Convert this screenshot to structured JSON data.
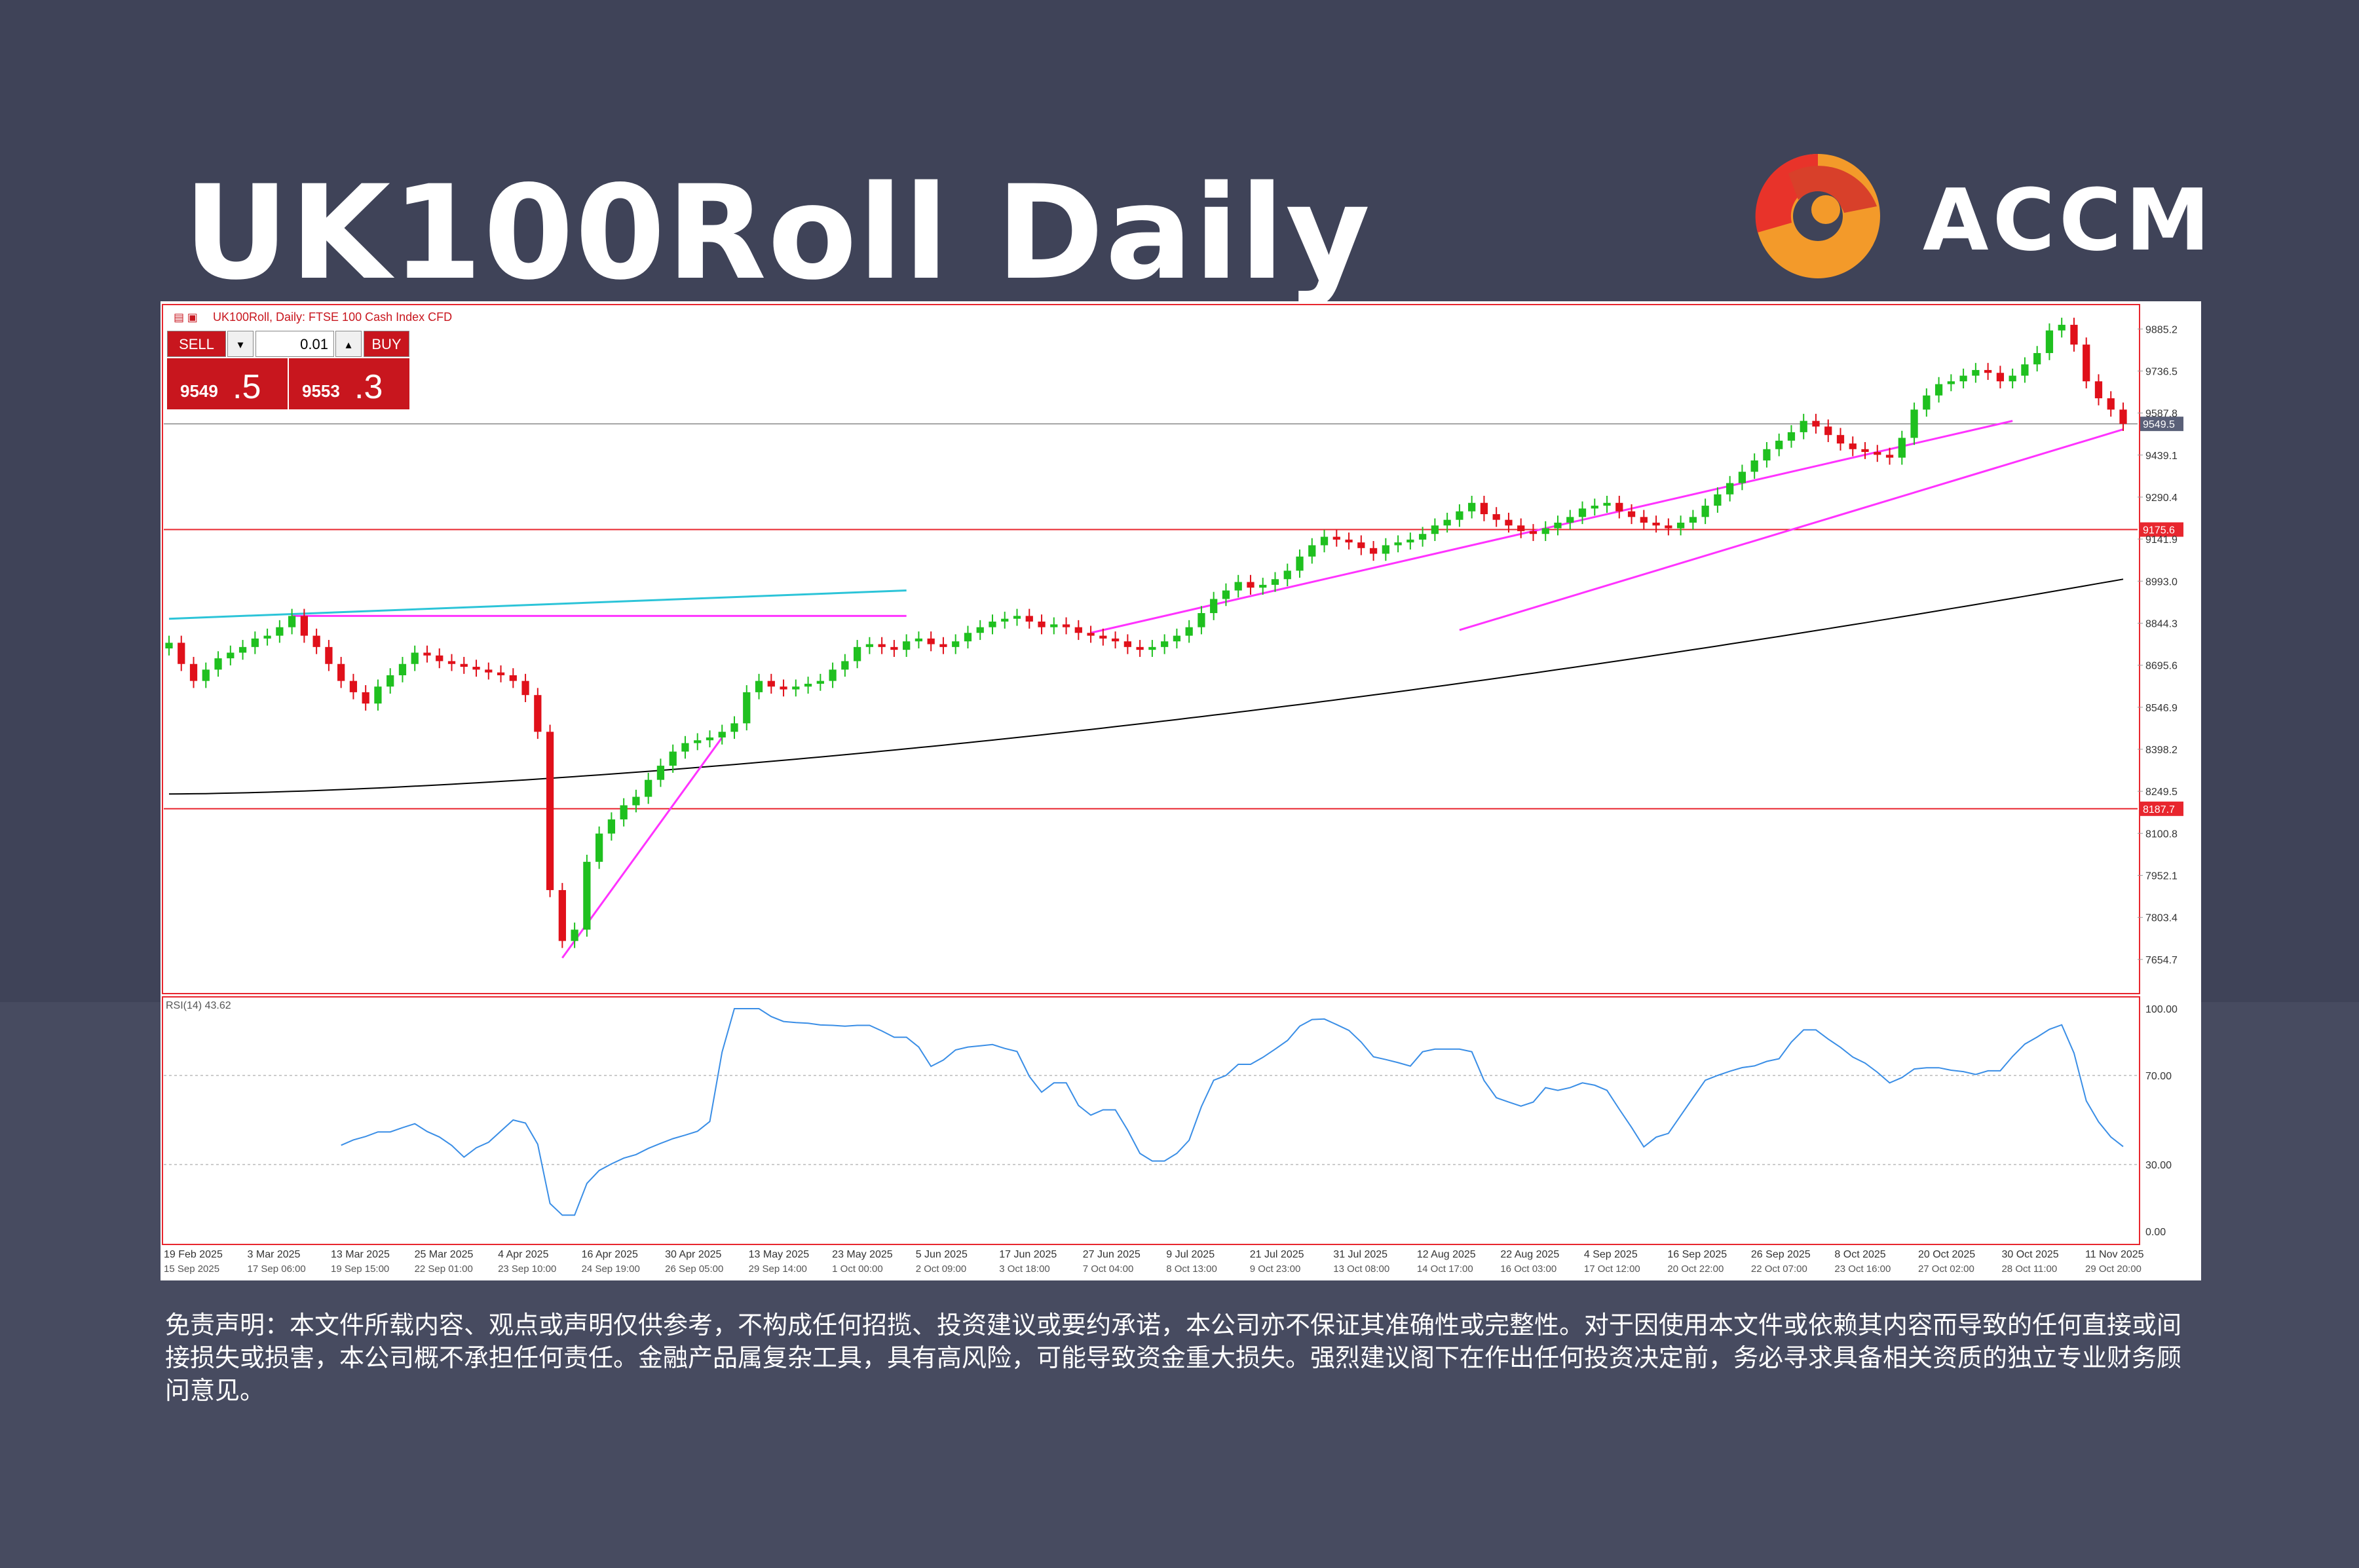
{
  "page": {
    "title": "UK100Roll Daily",
    "brand": "ACCM",
    "disclaimer": "免责声明：本文件所载内容、观点或声明仅供参考，不构成任何招揽、投资建议或要约承诺，本公司亦不保证其准确性或完整性。对于因使用本文件或依赖其内容而导致的任何直接或间接损失或损害，本公司概不承担任何责任。金融产品属复杂工具，具有高风险，可能导致资金重大损失。强烈建议阁下在作出任何投资决定前，务必寻求具备相关资质的独立专业财务顾问意见。"
  },
  "colors": {
    "background": "#3f4358",
    "bull": "#1fc01f",
    "bear": "#e0101a",
    "trendline": "#ff33ff",
    "channel": "#2cc4d8",
    "ma": "#000000",
    "level": "#e8262e",
    "rsi": "#3a8ee6",
    "brand_red": "#e8332a",
    "brand_orange": "#f39a2a"
  },
  "terminal": {
    "header": "UK100Roll, Daily: FTSE 100 Cash Index CFD",
    "sell_label": "SELL",
    "buy_label": "BUY",
    "lot": "0.01",
    "sell_price_main": "9549",
    "sell_price_big": ".5",
    "buy_price_main": "9553",
    "buy_price_big": ".3",
    "rsi_label": "RSI(14) 43.62"
  },
  "chart_data": {
    "type": "candlestick",
    "title": "UK100Roll, Daily: FTSE 100 Cash Index CFD",
    "ylim": [
      7550,
      9960
    ],
    "yticks": [
      "9885.2",
      "9736.5",
      "9587.8",
      "9439.1",
      "9290.4",
      "9141.9",
      "8993.0",
      "8844.3",
      "8695.6",
      "8546.9",
      "8398.2",
      "8249.5",
      "8100.8",
      "7952.1",
      "7803.4",
      "7654.7"
    ],
    "current_price_label": "9549.5",
    "current_price": 9549.5,
    "resistance_label": "9175.6",
    "resistance": 9175.6,
    "support_label": "8187.7",
    "support": 8187.7,
    "xlabels_top": [
      "19 Feb 2025",
      "3 Mar 2025",
      "13 Mar 2025",
      "25 Mar 2025",
      "4 Apr 2025",
      "16 Apr 2025",
      "30 Apr 2025",
      "13 May 2025",
      "23 May 2025",
      "5 Jun 2025",
      "17 Jun 2025",
      "27 Jun 2025",
      "9 Jul 2025",
      "21 Jul 2025",
      "31 Jul 2025",
      "12 Aug 2025",
      "22 Aug 2025",
      "4 Sep 2025",
      "16 Sep 2025",
      "26 Sep 2025",
      "8 Oct 2025",
      "20 Oct 2025",
      "30 Oct 2025",
      "11 Nov 2025"
    ],
    "xlabels_bottom": [
      "15 Sep 2025",
      "17 Sep 06:00",
      "19 Sep 15:00",
      "22 Sep 01:00",
      "23 Sep 10:00",
      "24 Sep 19:00",
      "26 Sep 05:00",
      "29 Sep 14:00",
      "1 Oct 00:00",
      "2 Oct 09:00",
      "3 Oct 18:00",
      "7 Oct 04:00",
      "8 Oct 13:00",
      "9 Oct 23:00",
      "13 Oct 08:00",
      "14 Oct 17:00",
      "16 Oct 03:00",
      "17 Oct 12:00",
      "20 Oct 22:00",
      "22 Oct 07:00",
      "23 Oct 16:00",
      "27 Oct 02:00",
      "28 Oct 11:00",
      "29 Oct 20:00"
    ],
    "closes": [
      8775,
      8700,
      8640,
      8680,
      8720,
      8740,
      8760,
      8790,
      8800,
      8830,
      8870,
      8800,
      8760,
      8700,
      8640,
      8600,
      8560,
      8620,
      8660,
      8700,
      8740,
      8730,
      8710,
      8700,
      8690,
      8680,
      8670,
      8660,
      8640,
      8590,
      8460,
      7900,
      7720,
      7760,
      8000,
      8100,
      8150,
      8200,
      8230,
      8290,
      8340,
      8390,
      8420,
      8430,
      8440,
      8460,
      8490,
      8600,
      8640,
      8620,
      8610,
      8620,
      8630,
      8640,
      8680,
      8710,
      8760,
      8770,
      8760,
      8750,
      8780,
      8790,
      8770,
      8760,
      8780,
      8810,
      8830,
      8850,
      8860,
      8870,
      8850,
      8830,
      8840,
      8830,
      8810,
      8800,
      8790,
      8780,
      8760,
      8750,
      8760,
      8780,
      8800,
      8830,
      8880,
      8930,
      8960,
      8990,
      8970,
      8980,
      9000,
      9030,
      9080,
      9120,
      9150,
      9140,
      9130,
      9110,
      9090,
      9120,
      9130,
      9140,
      9160,
      9190,
      9210,
      9240,
      9270,
      9230,
      9210,
      9190,
      9170,
      9160,
      9180,
      9200,
      9220,
      9250,
      9260,
      9270,
      9240,
      9220,
      9200,
      9190,
      9180,
      9200,
      9220,
      9260,
      9300,
      9340,
      9380,
      9420,
      9460,
      9490,
      9520,
      9560,
      9540,
      9510,
      9480,
      9460,
      9450,
      9440,
      9430,
      9500,
      9600,
      9650,
      9690,
      9700,
      9720,
      9740,
      9730,
      9700,
      9720,
      9760,
      9800,
      9880,
      9900,
      9830,
      9700,
      9640,
      9600,
      9549.5
    ],
    "ma_series": {
      "name": "MA",
      "start": 8240,
      "end": 9000
    },
    "rsi": {
      "name": "RSI(14)",
      "value": 43.62,
      "levels": [
        70,
        30
      ],
      "ylim": [
        0,
        100
      ],
      "yticks": [
        "100.00",
        "70.00",
        "30.00",
        "0.00"
      ]
    }
  }
}
